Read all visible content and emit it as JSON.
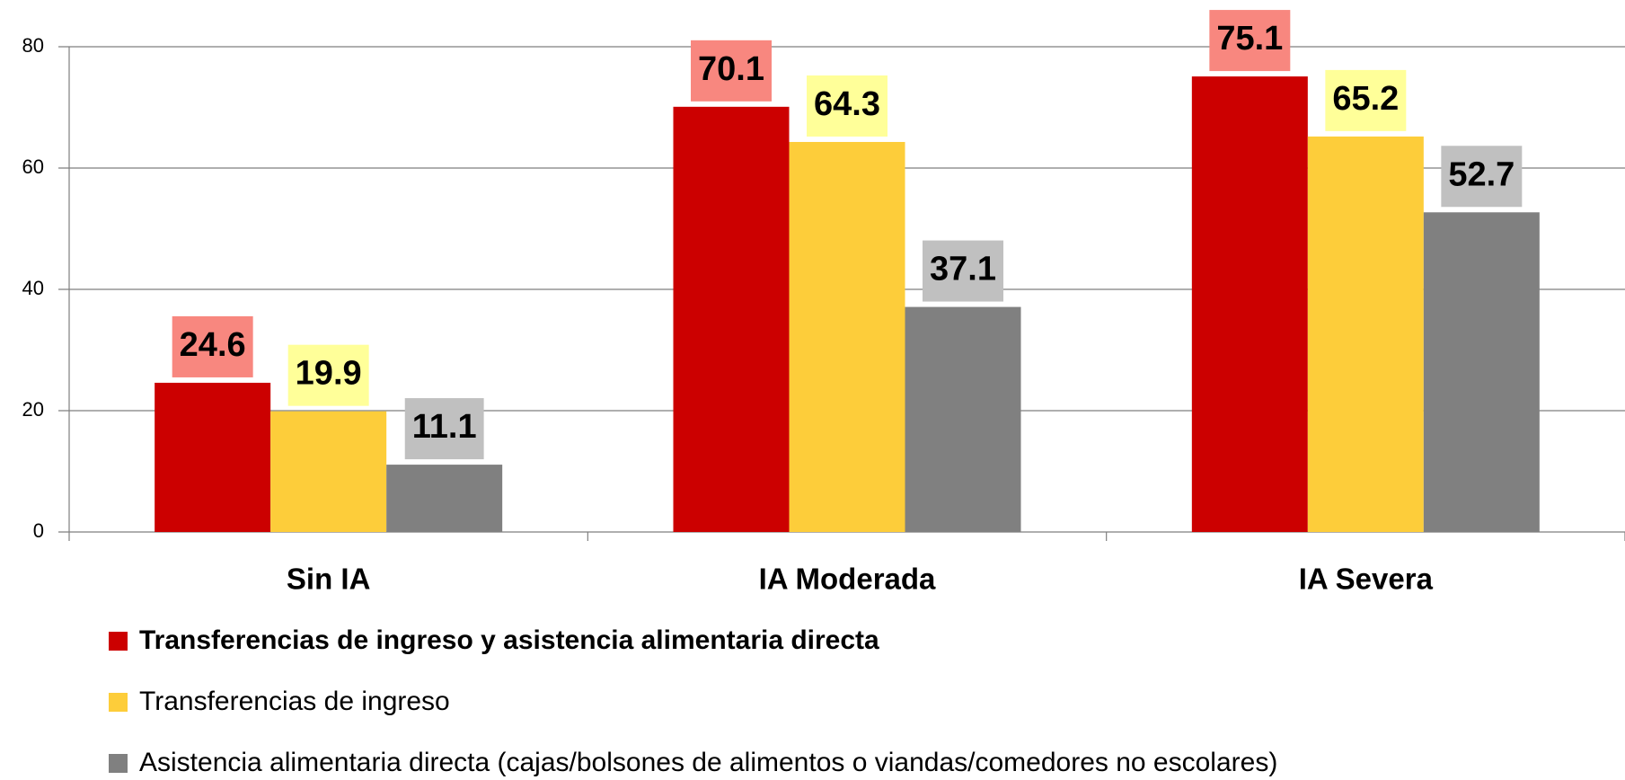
{
  "chart_data": {
    "type": "bar",
    "categories": [
      "Sin IA",
      "IA Moderada",
      "IA Severa"
    ],
    "series": [
      {
        "name": "Transferencias de ingreso y asistencia alimentaria directa",
        "color": "#cc0000",
        "label_color": "#f8877f",
        "values": [
          24.6,
          70.1,
          75.1
        ]
      },
      {
        "name": "Transferencias de ingreso",
        "color": "#fdcd3a",
        "label_color": "#ffff99",
        "values": [
          19.9,
          64.3,
          65.2
        ]
      },
      {
        "name": "Asistencia alimentaria directa (cajas/bolsones de alimentos o viandas/comedores no escolares)",
        "color": "#808080",
        "label_color": "#c0c0c0",
        "values": [
          11.1,
          37.1,
          52.7
        ]
      }
    ],
    "ylim": [
      0,
      80
    ],
    "yticks": [
      0,
      20,
      40,
      60,
      80
    ],
    "grid": true
  }
}
